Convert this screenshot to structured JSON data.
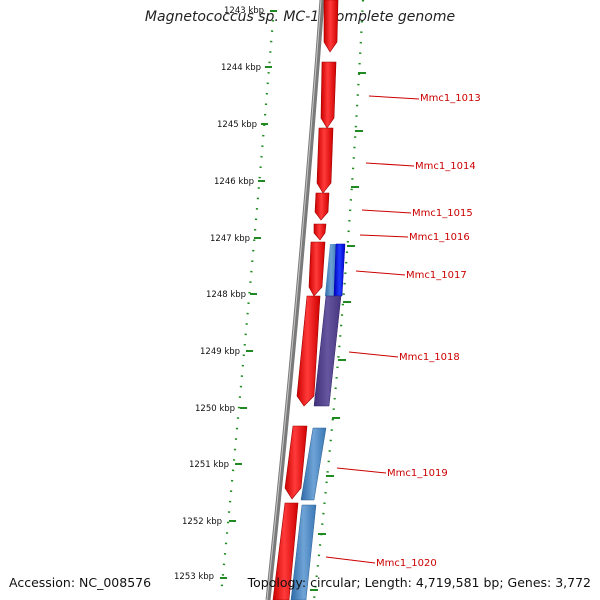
{
  "title": "Magnetococcus sp. MC-1, complete genome",
  "accession_text": "Accession: NC_008576",
  "summary_text": "Topology: circular; Length: 4,719,581 bp; Genes: 3,772",
  "kbp_ticks": [
    "1243 kbp",
    "1244 kbp",
    "1245 kbp",
    "1246 kbp",
    "1247 kbp",
    "1248 kbp",
    "1249 kbp",
    "1250 kbp",
    "1251 kbp",
    "1252 kbp",
    "1253 kbp"
  ],
  "gene_labels": [
    "Mmc1_1013",
    "Mmc1_1014",
    "Mmc1_1015",
    "Mmc1_1016",
    "Mmc1_1017",
    "Mmc1_1018",
    "Mmc1_1019",
    "Mmc1_1020"
  ],
  "colors": {
    "forward_gene": "#ff1a1a",
    "reverse_gene_steel": "#4a86c0",
    "reverse_gene_blue": "#0000ee",
    "reverse_gene_purple": "#55438e",
    "backbone": "#7a7a7a",
    "ticks": "#1f8a1f",
    "label": "#cc0000"
  }
}
